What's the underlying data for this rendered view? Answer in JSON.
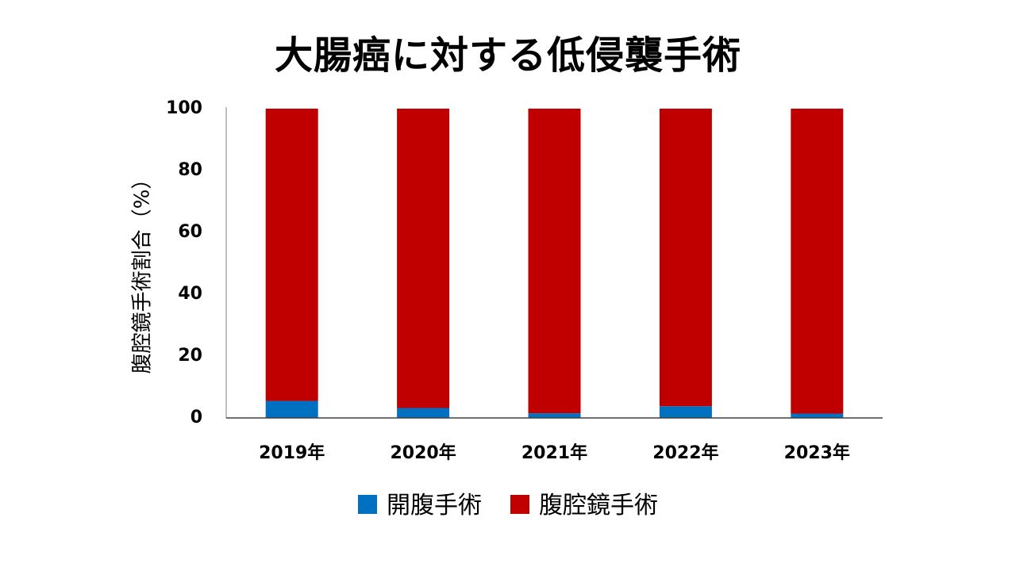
{
  "chart_data": {
    "type": "bar",
    "stacked": true,
    "title": "大腸癌に対する低侵襲手術",
    "xlabel": "",
    "ylabel": "腹腔鏡手術割合（%）",
    "ylim": [
      0,
      100
    ],
    "yticks": [
      "0",
      "20",
      "40",
      "60",
      "80",
      "100"
    ],
    "categories": [
      "2019年",
      "2020年",
      "2021年",
      "2022年",
      "2023年"
    ],
    "series": [
      {
        "name": "開腹手術",
        "color": "#0070C0",
        "values": [
          5.5,
          3.2,
          1.5,
          3.8,
          1.4
        ]
      },
      {
        "name": "腹腔鏡手術",
        "color": "#C00000",
        "values": [
          94.5,
          96.8,
          98.5,
          96.2,
          98.6
        ]
      }
    ],
    "legend_position": "bottom",
    "grid": false
  }
}
